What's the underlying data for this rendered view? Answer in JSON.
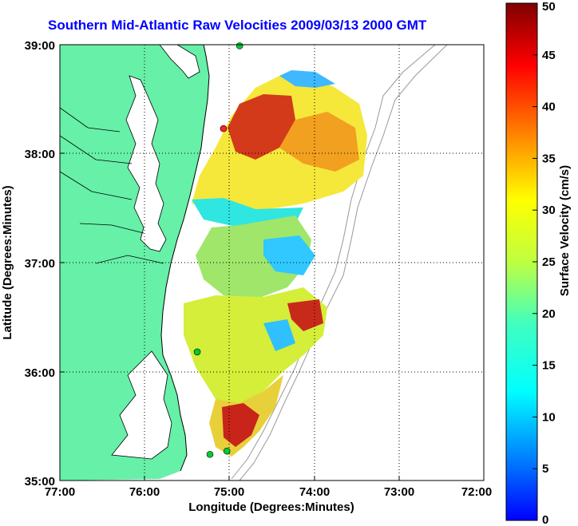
{
  "title": "Southern Mid-Atlantic Raw Velocities 2009/03/13 2000 GMT",
  "colors": {
    "land": "#66f0a8",
    "water": "#ffffff",
    "grid": "#000000",
    "title": "#0000ff",
    "station": "#00cc33",
    "station_alt": "#ff2222"
  },
  "map": {
    "xlabel": "Longitude (Degrees:Minutes)",
    "ylabel": "Latitude (Degrees:Minutes)",
    "lon_ticks": [
      "77:00",
      "76:00",
      "75:00",
      "74:00",
      "73:00",
      "72:00"
    ],
    "lat_ticks": [
      "39:00",
      "38:00",
      "37:00",
      "36:00",
      "35:00"
    ],
    "lon_range": [
      -77,
      -72
    ],
    "lat_range": [
      35,
      39
    ],
    "grid": true
  },
  "colorbar": {
    "label": "Surface Velocity (cm/s)",
    "ticks": [
      "50",
      "45",
      "40",
      "35",
      "30",
      "25",
      "20",
      "15",
      "10",
      "5",
      "0"
    ],
    "range": [
      0,
      50
    ],
    "colormap": "jet"
  },
  "stations": [
    {
      "lon": -74.88,
      "lat": 38.99,
      "color": "station"
    },
    {
      "lon": -75.07,
      "lat": 38.23,
      "color": "station_alt"
    },
    {
      "lon": -75.38,
      "lat": 36.18,
      "color": "station"
    },
    {
      "lon": -75.03,
      "lat": 35.27,
      "color": "station"
    },
    {
      "lon": -75.23,
      "lat": 35.24,
      "color": "station"
    }
  ]
}
